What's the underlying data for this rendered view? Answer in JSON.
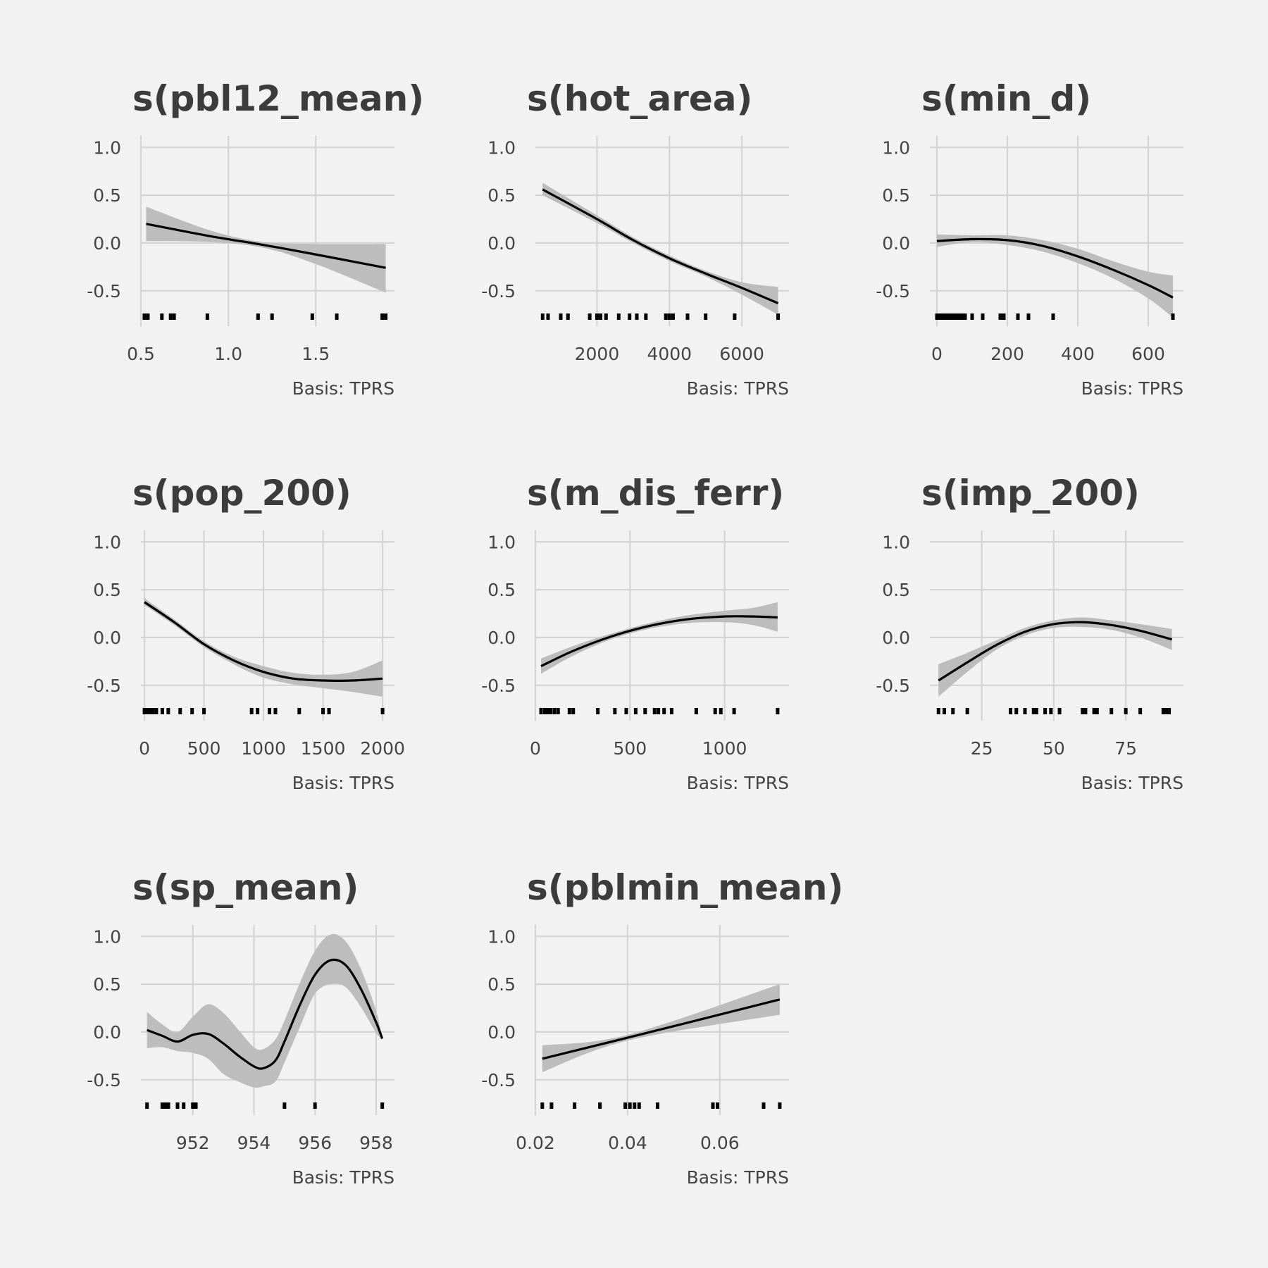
{
  "figure": {
    "background": "#f2f2f2",
    "band_color": "#bdbdbd",
    "line_color": "#000000",
    "grid_color": "#d4d4d4",
    "text_color": "#3c3c3c"
  },
  "chart_data": [
    {
      "type": "line",
      "title": "s(pbl12_mean)",
      "caption": "Basis: TPRS",
      "xlim": [
        0.5,
        1.95
      ],
      "ylim": [
        -0.87,
        1.12
      ],
      "x_ticks": [
        0.5,
        1.0,
        1.5
      ],
      "x_tick_labels": [
        "0.5",
        "1.0",
        "1.5"
      ],
      "y_ticks": [
        1.0,
        0.5,
        0.0,
        -0.5
      ],
      "y_tick_labels": [
        "1.0",
        "0.5",
        "0.0",
        "-0.5"
      ],
      "x": [
        0.53,
        0.9,
        1.2,
        1.5,
        1.9
      ],
      "fit": [
        0.2,
        0.07,
        -0.02,
        -0.12,
        -0.26
      ],
      "lower": [
        0.02,
        0.01,
        -0.05,
        -0.22,
        -0.52
      ],
      "upper": [
        0.38,
        0.13,
        0.01,
        -0.01,
        -0.01
      ],
      "rug": [
        0.52,
        0.54,
        0.62,
        0.67,
        0.69,
        0.88,
        1.17,
        1.25,
        1.48,
        1.62,
        1.88,
        1.9
      ]
    },
    {
      "type": "line",
      "title": "s(hot_area)",
      "caption": "Basis: TPRS",
      "xlim": [
        300,
        7300
      ],
      "ylim": [
        -0.87,
        1.12
      ],
      "x_ticks": [
        2000,
        4000,
        6000
      ],
      "x_tick_labels": [
        "2000",
        "4000",
        "6000"
      ],
      "y_ticks": [
        1.0,
        0.5,
        0.0,
        -0.5
      ],
      "y_tick_labels": [
        "1.0",
        "0.5",
        "0.0",
        "-0.5"
      ],
      "x": [
        500,
        2000,
        3000,
        4000,
        5000,
        6000,
        7000
      ],
      "fit": [
        0.56,
        0.25,
        0.03,
        -0.16,
        -0.32,
        -0.47,
        -0.63
      ],
      "lower": [
        0.5,
        0.21,
        0.0,
        -0.19,
        -0.35,
        -0.54,
        -0.75
      ],
      "upper": [
        0.63,
        0.29,
        0.06,
        -0.13,
        -0.29,
        -0.41,
        -0.46
      ],
      "rug": [
        500,
        650,
        1000,
        1200,
        1800,
        2000,
        2100,
        2250,
        2600,
        2900,
        3100,
        3350,
        3900,
        4000,
        4100,
        4500,
        5000,
        5800,
        7000
      ]
    },
    {
      "type": "line",
      "title": "s(min_d)",
      "caption": "Basis: TPRS",
      "xlim": [
        -20,
        700
      ],
      "ylim": [
        -0.87,
        1.12
      ],
      "x_ticks": [
        0,
        200,
        400,
        600
      ],
      "x_tick_labels": [
        "0",
        "200",
        "400",
        "600"
      ],
      "y_ticks": [
        1.0,
        0.5,
        0.0,
        -0.5
      ],
      "y_tick_labels": [
        "1.0",
        "0.5",
        "0.0",
        "-0.5"
      ],
      "x": [
        0,
        100,
        200,
        300,
        400,
        500,
        600,
        670
      ],
      "fit": [
        0.02,
        0.04,
        0.03,
        -0.03,
        -0.14,
        -0.28,
        -0.44,
        -0.57
      ],
      "lower": [
        -0.04,
        0.01,
        -0.02,
        -0.09,
        -0.21,
        -0.37,
        -0.58,
        -0.78
      ],
      "upper": [
        0.09,
        0.08,
        0.08,
        0.03,
        -0.06,
        -0.19,
        -0.3,
        -0.34
      ],
      "rug": [
        0,
        5,
        10,
        15,
        20,
        30,
        40,
        50,
        60,
        70,
        80,
        100,
        130,
        180,
        190,
        230,
        260,
        330,
        670
      ]
    },
    {
      "type": "line",
      "title": "s(pop_200)",
      "caption": "Basis: TPRS",
      "xlim": [
        -30,
        2100
      ],
      "ylim": [
        -0.87,
        1.12
      ],
      "x_ticks": [
        0,
        500,
        1000,
        1500,
        2000
      ],
      "x_tick_labels": [
        "0",
        "500",
        "1000",
        "1500",
        "2000"
      ],
      "y_ticks": [
        1.0,
        0.5,
        0.0,
        -0.5
      ],
      "y_tick_labels": [
        "1.0",
        "0.5",
        "0.0",
        "-0.5"
      ],
      "x": [
        0,
        250,
        500,
        750,
        1000,
        1250,
        1500,
        1750,
        2000
      ],
      "fit": [
        0.37,
        0.16,
        -0.07,
        -0.24,
        -0.36,
        -0.43,
        -0.45,
        -0.45,
        -0.43
      ],
      "lower": [
        0.34,
        0.13,
        -0.1,
        -0.28,
        -0.42,
        -0.49,
        -0.53,
        -0.57,
        -0.62
      ],
      "upper": [
        0.41,
        0.19,
        -0.04,
        -0.2,
        -0.3,
        -0.37,
        -0.39,
        -0.36,
        -0.24
      ],
      "rug": [
        0,
        15,
        30,
        50,
        70,
        100,
        150,
        200,
        300,
        400,
        500,
        900,
        950,
        1050,
        1100,
        1300,
        1500,
        1550,
        2000
      ]
    },
    {
      "type": "line",
      "title": "s(m_dis_ferr)",
      "caption": "Basis: TPRS",
      "xlim": [
        0,
        1340
      ],
      "ylim": [
        -0.87,
        1.12
      ],
      "x_ticks": [
        0,
        500,
        1000
      ],
      "x_tick_labels": [
        "0",
        "500",
        "1000"
      ],
      "y_ticks": [
        1.0,
        0.5,
        0.0,
        -0.5
      ],
      "y_tick_labels": [
        "1.0",
        "0.5",
        "0.0",
        "-0.5"
      ],
      "x": [
        30,
        200,
        400,
        600,
        800,
        1000,
        1150,
        1280
      ],
      "fit": [
        -0.3,
        -0.14,
        0.01,
        0.12,
        0.19,
        0.22,
        0.22,
        0.21
      ],
      "lower": [
        -0.38,
        -0.19,
        -0.02,
        0.09,
        0.15,
        0.16,
        0.13,
        0.06
      ],
      "upper": [
        -0.22,
        -0.09,
        0.04,
        0.15,
        0.23,
        0.28,
        0.31,
        0.37
      ],
      "rug": [
        30,
        50,
        60,
        70,
        80,
        100,
        120,
        180,
        200,
        330,
        420,
        480,
        530,
        580,
        630,
        650,
        680,
        720,
        850,
        950,
        980,
        1050,
        1280
      ]
    },
    {
      "type": "line",
      "title": "s(imp_200)",
      "caption": "Basis: TPRS",
      "xlim": [
        7,
        95
      ],
      "ylim": [
        -0.87,
        1.12
      ],
      "x_ticks": [
        25,
        50,
        75
      ],
      "x_tick_labels": [
        "25",
        "50",
        "75"
      ],
      "y_ticks": [
        1.0,
        0.5,
        0.0,
        -0.5
      ],
      "y_tick_labels": [
        "1.0",
        "0.5",
        "0.0",
        "-0.5"
      ],
      "x": [
        10,
        20,
        30,
        40,
        50,
        60,
        70,
        80,
        91
      ],
      "fit": [
        -0.45,
        -0.26,
        -0.08,
        0.06,
        0.14,
        0.16,
        0.13,
        0.07,
        -0.02
      ],
      "lower": [
        -0.62,
        -0.36,
        -0.13,
        0.02,
        0.1,
        0.11,
        0.08,
        0.0,
        -0.13
      ],
      "upper": [
        -0.28,
        -0.16,
        -0.03,
        0.1,
        0.18,
        0.21,
        0.18,
        0.14,
        0.09
      ],
      "rug": [
        10,
        12,
        15,
        20,
        35,
        37,
        40,
        43,
        44,
        47,
        49,
        52,
        60,
        61,
        64,
        65,
        70,
        75,
        80,
        88,
        89,
        90
      ]
    },
    {
      "type": "line",
      "title": "s(sp_mean)",
      "caption": "Basis: TPRS",
      "xlim": [
        950.3,
        958.6
      ],
      "ylim": [
        -0.87,
        1.12
      ],
      "x_ticks": [
        952,
        954,
        956,
        958
      ],
      "x_tick_labels": [
        "952",
        "954",
        "956",
        "958"
      ],
      "y_ticks": [
        1.0,
        0.5,
        0.0,
        -0.5
      ],
      "y_tick_labels": [
        "1.0",
        "0.5",
        "0.0",
        "-0.5"
      ],
      "x": [
        950.5,
        951.0,
        951.5,
        952.0,
        952.5,
        953.0,
        953.5,
        954.0,
        954.3,
        954.7,
        955.0,
        955.5,
        956.0,
        956.5,
        957.0,
        957.5,
        958.0,
        958.2
      ],
      "fit": [
        0.02,
        -0.04,
        -0.1,
        -0.03,
        -0.02,
        -0.12,
        -0.25,
        -0.36,
        -0.38,
        -0.3,
        -0.1,
        0.28,
        0.6,
        0.75,
        0.7,
        0.45,
        0.1,
        -0.07
      ],
      "lower": [
        -0.17,
        -0.16,
        -0.2,
        -0.22,
        -0.28,
        -0.44,
        -0.52,
        -0.58,
        -0.57,
        -0.52,
        -0.32,
        0.05,
        0.4,
        0.5,
        0.47,
        0.26,
        -0.01,
        -0.07
      ],
      "upper": [
        0.21,
        0.08,
        0.0,
        0.16,
        0.29,
        0.2,
        0.02,
        -0.16,
        -0.18,
        -0.08,
        0.12,
        0.51,
        0.85,
        1.02,
        0.95,
        0.66,
        0.22,
        -0.07
      ],
      "rug": [
        950.5,
        951.0,
        951.1,
        951.2,
        951.5,
        951.7,
        952.0,
        952.1,
        955.0,
        956.0,
        958.2
      ]
    },
    {
      "type": "line",
      "title": "s(pblmin_mean)",
      "caption": "Basis: TPRS",
      "xlim": [
        0.02,
        0.075
      ],
      "ylim": [
        -0.87,
        1.12
      ],
      "x_ticks": [
        0.02,
        0.04,
        0.06
      ],
      "x_tick_labels": [
        "0.02",
        "0.04",
        "0.06"
      ],
      "y_ticks": [
        1.0,
        0.5,
        0.0,
        -0.5
      ],
      "y_tick_labels": [
        "1.0",
        "0.5",
        "0.0",
        "-0.5"
      ],
      "x": [
        0.0215,
        0.04,
        0.073
      ],
      "fit": [
        -0.28,
        -0.06,
        0.34
      ],
      "lower": [
        -0.42,
        -0.09,
        0.18
      ],
      "upper": [
        -0.14,
        -0.03,
        0.5
      ],
      "rug": [
        0.0215,
        0.0235,
        0.0285,
        0.034,
        0.0395,
        0.0405,
        0.0415,
        0.0425,
        0.0465,
        0.0585,
        0.0595,
        0.0695,
        0.073
      ]
    }
  ]
}
